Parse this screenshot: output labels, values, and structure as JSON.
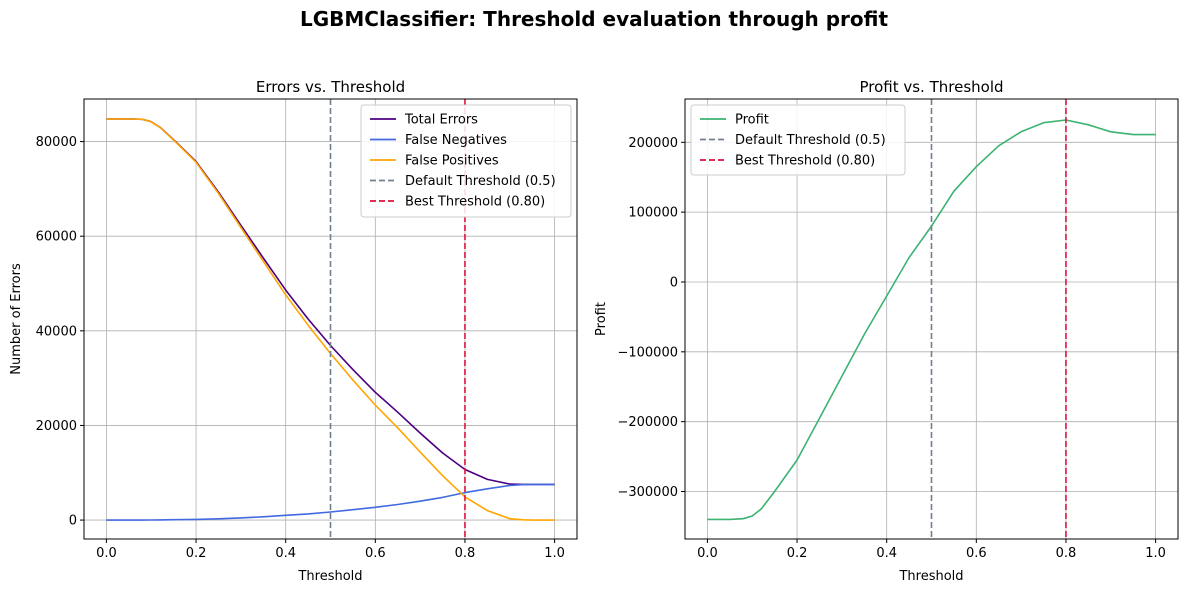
{
  "figure": {
    "suptitle": "LGBMClassifier: Threshold evaluation through profit"
  },
  "chart_data": [
    {
      "type": "line",
      "title": "Errors vs. Threshold",
      "xlabel": "Threshold",
      "ylabel": "Number of Errors",
      "xlim": [
        -0.05,
        1.05
      ],
      "ylim": [
        -4000,
        89000
      ],
      "xticks": [
        0.0,
        0.2,
        0.4,
        0.6,
        0.8,
        1.0
      ],
      "xtick_labels": [
        "0.0",
        "0.2",
        "0.4",
        "0.6",
        "0.8",
        "1.0"
      ],
      "yticks": [
        0,
        20000,
        40000,
        60000,
        80000
      ],
      "ytick_labels": [
        "0",
        "20000",
        "40000",
        "60000",
        "80000"
      ],
      "grid": true,
      "legend_position": "upper right",
      "x": [
        0.0,
        0.05,
        0.08,
        0.1,
        0.12,
        0.15,
        0.2,
        0.25,
        0.3,
        0.35,
        0.4,
        0.45,
        0.5,
        0.55,
        0.6,
        0.65,
        0.7,
        0.75,
        0.8,
        0.85,
        0.9,
        0.93,
        0.95,
        1.0
      ],
      "series": [
        {
          "name": "Total Errors",
          "color": "#4b0082",
          "values": [
            84800,
            84800,
            84700,
            84200,
            83000,
            80400,
            75800,
            69300,
            62300,
            55400,
            48600,
            42500,
            36900,
            31800,
            27000,
            22800,
            18400,
            14200,
            10700,
            8600,
            7600,
            7550,
            7550,
            7550
          ]
        },
        {
          "name": "False Negatives",
          "color": "#4169e1",
          "values": [
            0,
            0,
            0,
            20,
            40,
            80,
            150,
            280,
            450,
            700,
            1000,
            1300,
            1700,
            2200,
            2700,
            3300,
            4000,
            4800,
            5800,
            6600,
            7300,
            7500,
            7550,
            7550
          ]
        },
        {
          "name": "False Positives",
          "color": "#ffa500",
          "values": [
            84800,
            84800,
            84700,
            84180,
            82960,
            80320,
            75650,
            69020,
            61850,
            54700,
            47600,
            41200,
            35200,
            29600,
            24300,
            19500,
            14400,
            9400,
            4900,
            2000,
            300,
            50,
            0,
            0
          ]
        }
      ],
      "vlines": [
        {
          "name": "Default Threshold (0.5)",
          "x": 0.5,
          "color": "#708090",
          "style": "dashed"
        },
        {
          "name": "Best Threshold (0.80)",
          "x": 0.8,
          "color": "#dc143c",
          "style": "dashed"
        }
      ]
    },
    {
      "type": "line",
      "title": "Profit vs. Threshold",
      "xlabel": "Threshold",
      "ylabel": "Profit",
      "xlim": [
        -0.05,
        1.05
      ],
      "ylim": [
        -368000,
        262000
      ],
      "xticks": [
        0.0,
        0.2,
        0.4,
        0.6,
        0.8,
        1.0
      ],
      "xtick_labels": [
        "0.0",
        "0.2",
        "0.4",
        "0.6",
        "0.8",
        "1.0"
      ],
      "yticks": [
        -300000,
        -200000,
        -100000,
        0,
        100000,
        200000
      ],
      "ytick_labels": [
        "−300000",
        "−200000",
        "−100000",
        "0",
        "100000",
        "200000"
      ],
      "grid": true,
      "legend_position": "upper left",
      "x": [
        0.0,
        0.05,
        0.08,
        0.1,
        0.12,
        0.15,
        0.2,
        0.25,
        0.3,
        0.35,
        0.4,
        0.45,
        0.5,
        0.55,
        0.6,
        0.65,
        0.7,
        0.75,
        0.8,
        0.85,
        0.9,
        0.95,
        1.0
      ],
      "series": [
        {
          "name": "Profit",
          "color": "#3cb371",
          "values": [
            -340000,
            -340000,
            -339000,
            -335000,
            -325000,
            -300000,
            -255000,
            -195000,
            -135000,
            -75000,
            -20000,
            35000,
            80000,
            130000,
            165000,
            195000,
            215000,
            228000,
            232000,
            225000,
            215000,
            211000,
            211000
          ]
        }
      ],
      "vlines": [
        {
          "name": "Default Threshold (0.5)",
          "x": 0.5,
          "color": "#708090",
          "style": "dashed"
        },
        {
          "name": "Best Threshold (0.80)",
          "x": 0.8,
          "color": "#dc143c",
          "style": "dashed"
        }
      ]
    }
  ]
}
